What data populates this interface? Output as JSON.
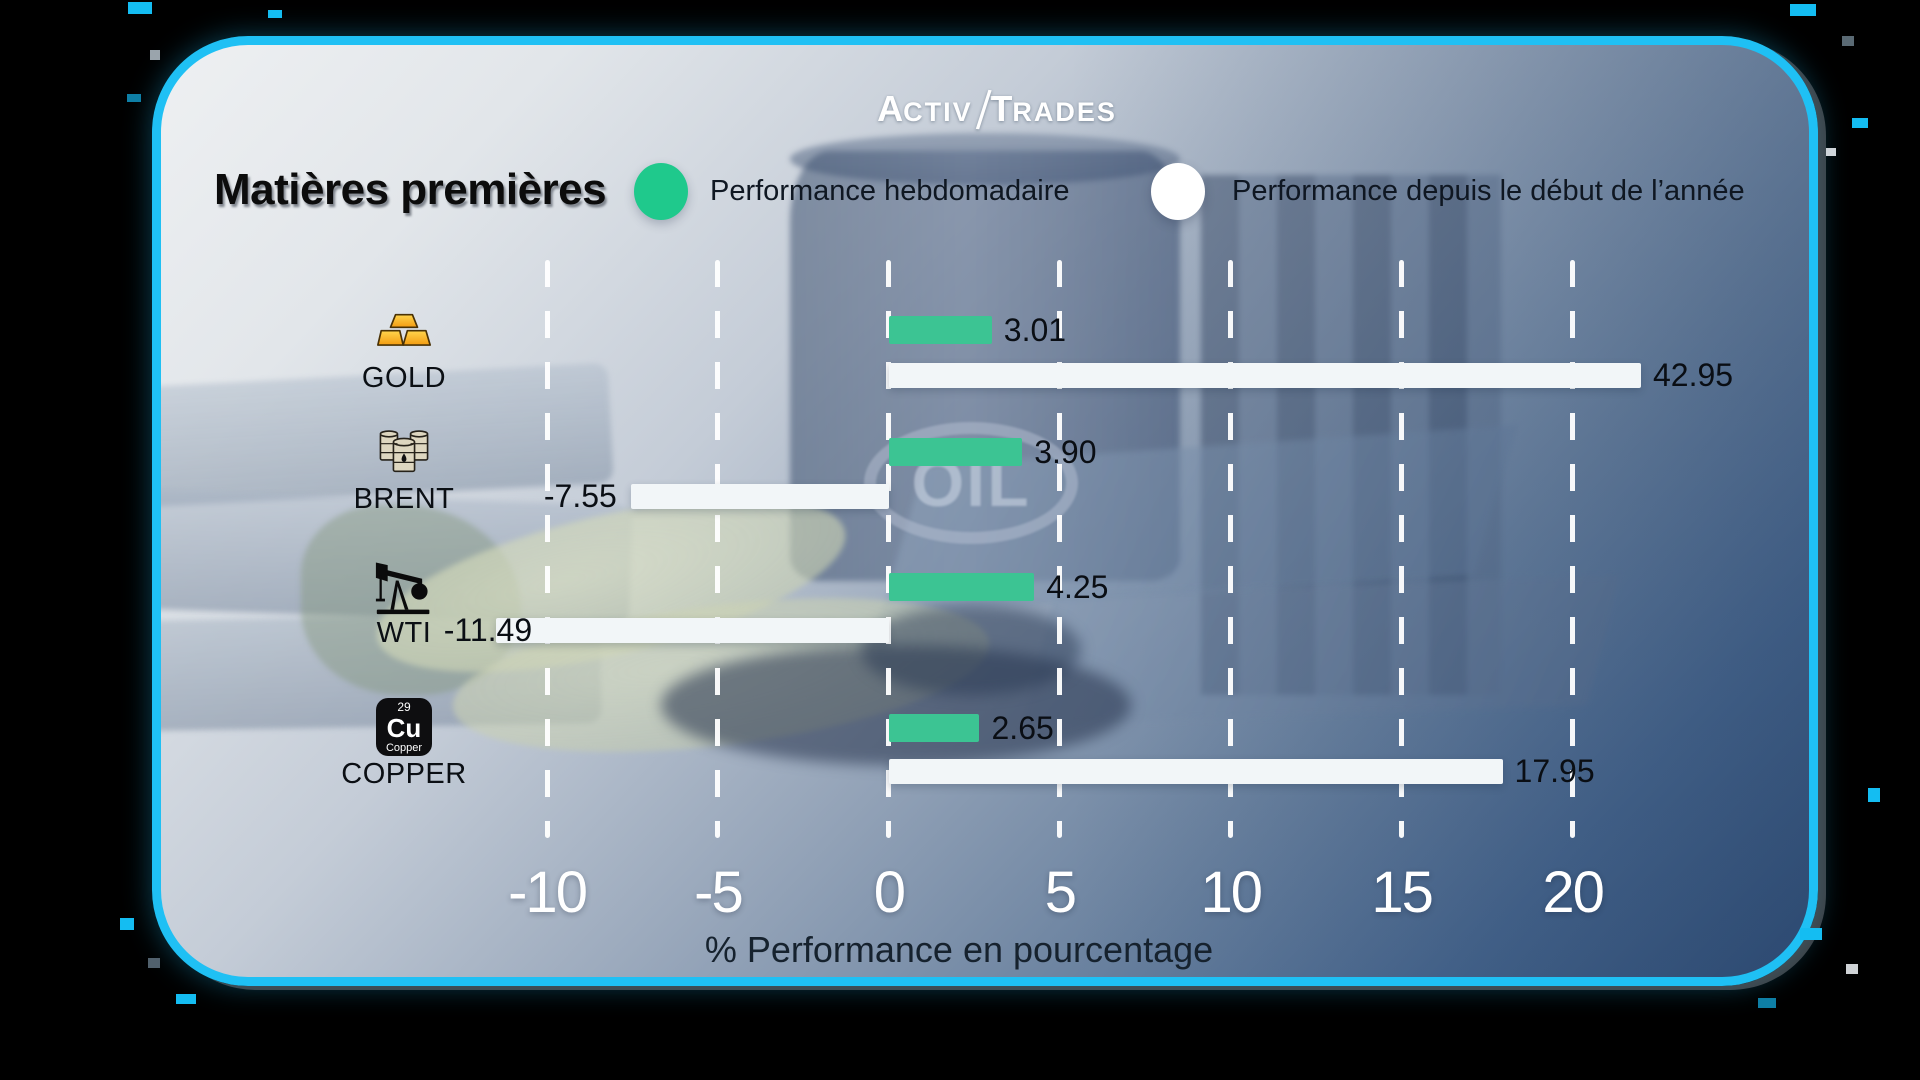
{
  "brand": {
    "full_name": "ActivTrades",
    "part1": "A",
    "part2": "CTIV",
    "separator": "/",
    "part3": "T",
    "part4": "RADES"
  },
  "header": {
    "title": "Matières premières"
  },
  "legend": {
    "weekly": {
      "label": "Performance hebdomadaire",
      "color": "#1fc98c"
    },
    "ytd": {
      "label": "Performance depuis le début de l’année",
      "color": "#ffffff"
    }
  },
  "background": {
    "watermark": "OIL"
  },
  "copper_icon": {
    "number": "29",
    "symbol": "Cu",
    "name": "Copper"
  },
  "colors": {
    "accent_border": "#1fc0f4",
    "weekly_bar": "#3cc493",
    "ytd_bar": "#f2f6f8"
  },
  "chart_data": {
    "type": "bar",
    "orientation": "horizontal",
    "title": "Matières premières",
    "categories": [
      "GOLD",
      "BRENT",
      "WTI",
      "COPPER"
    ],
    "icons": [
      "gold-bars",
      "oil-barrels",
      "pump-jack",
      "copper-element"
    ],
    "series": [
      {
        "name": "Performance hebdomadaire",
        "color": "#3cc493",
        "values": [
          3.01,
          3.9,
          4.25,
          2.65
        ],
        "labels": [
          "3.01",
          "3.90",
          "4.25",
          "2.65"
        ]
      },
      {
        "name": "Performance depuis le début de l’année",
        "color": "#f2f6f8",
        "values": [
          42.95,
          -7.55,
          -11.49,
          17.95
        ],
        "labels": [
          "42.95",
          "-7.55",
          "-11.49",
          "17.95"
        ]
      }
    ],
    "xticks": [
      -10,
      -5,
      0,
      5,
      10,
      15,
      20
    ],
    "xtick_labels": [
      "-10",
      "-5",
      "0",
      "5",
      "10",
      "15",
      "20"
    ],
    "xlabel": "% Performance en pourcentage",
    "xlim": [
      -12.4,
      22
    ],
    "grid": "dashed-white-vertical",
    "legend_position": "top"
  }
}
